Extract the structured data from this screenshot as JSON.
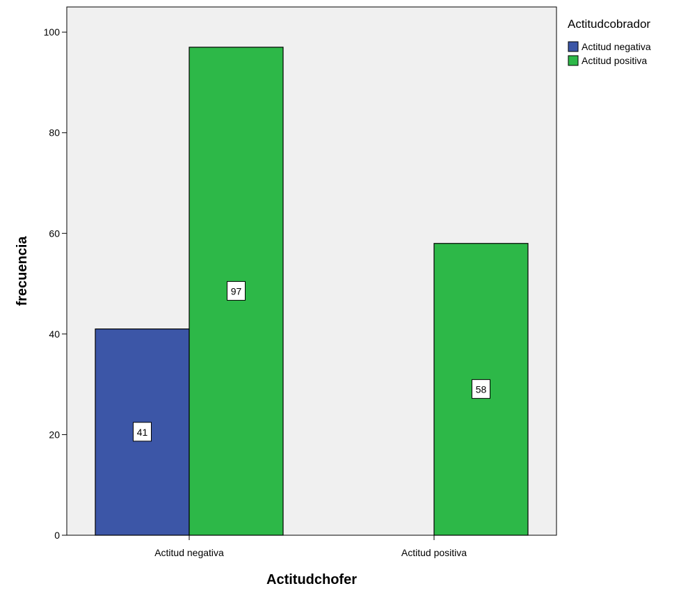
{
  "chart_data": {
    "type": "bar",
    "title": "",
    "xlabel": "Actitudchofer",
    "ylabel": "frecuencia",
    "categories": [
      "Actitud negativa",
      "Actitud positiva"
    ],
    "ylim": [
      0,
      105
    ],
    "yticks": [
      0,
      20,
      40,
      60,
      80,
      100
    ],
    "grid": false,
    "legend": {
      "title": "Actitudcobrador",
      "placement": "right-top"
    },
    "series": [
      {
        "name": "Actitud negativa",
        "color": "#3c56a7",
        "values": [
          41,
          null
        ]
      },
      {
        "name": "Actitud positiva",
        "color": "#2db848",
        "values": [
          97,
          58
        ]
      }
    ],
    "data_labels": [
      {
        "category": "Actitud negativa",
        "series": "Actitud negativa",
        "text": "41"
      },
      {
        "category": "Actitud negativa",
        "series": "Actitud positiva",
        "text": "97"
      },
      {
        "category": "Actitud positiva",
        "series": "Actitud positiva",
        "text": "58"
      }
    ],
    "plot_background": "#f0f0f0"
  }
}
